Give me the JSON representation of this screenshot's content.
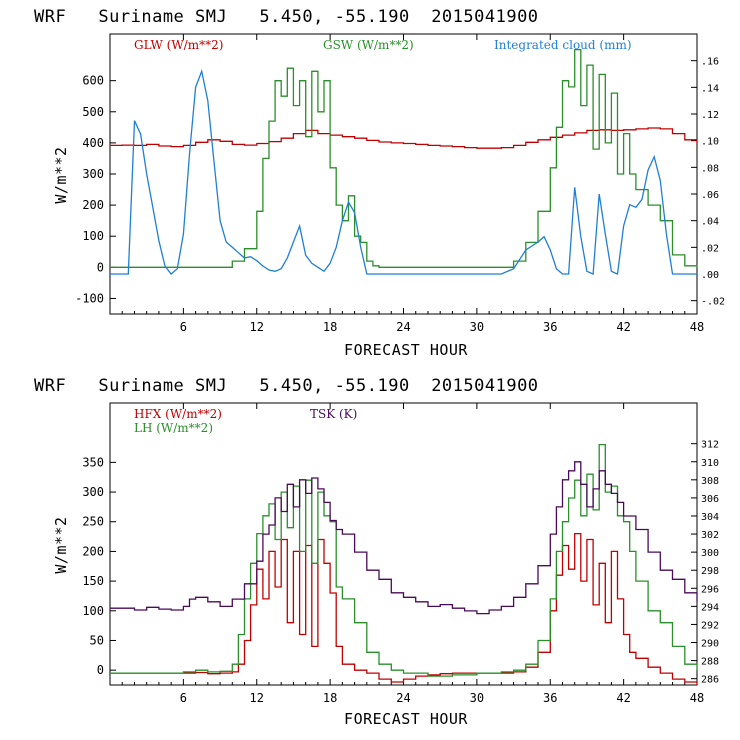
{
  "chart_data": [
    {
      "type": "line",
      "id": "top",
      "title": "WRF   Suriname SMJ   5.450, -55.190  2015041900",
      "xlabel": "FORECAST HOUR",
      "ylabel": "W/m**2",
      "xlim": [
        0,
        48
      ],
      "ylim": [
        -150,
        750
      ],
      "y2lim": [
        -0.03,
        0.18
      ],
      "xticks": [
        6,
        12,
        18,
        24,
        30,
        36,
        42,
        48
      ],
      "xtick_labels": [
        "6",
        "12",
        "18",
        "24",
        "30",
        "36",
        "42",
        "48"
      ],
      "yticks": [
        -100,
        0,
        100,
        200,
        300,
        400,
        500,
        600
      ],
      "ytick_labels": [
        "-100",
        "0",
        "100",
        "200",
        "300",
        "400",
        "500",
        "600"
      ],
      "y2ticks": [
        -0.02,
        0.0,
        0.02,
        0.04,
        0.06,
        0.08,
        0.1,
        0.12,
        0.14,
        0.16
      ],
      "y2tick_labels": [
        "-.02",
        ".00",
        ".02",
        ".04",
        ".06",
        ".08",
        ".10",
        ".12",
        ".14",
        ".16"
      ],
      "series": [
        {
          "name": "GLW (W/m**2)",
          "color": "#c00000",
          "axis": "left",
          "step": true,
          "x": [
            0,
            1,
            2,
            3,
            4,
            5,
            6,
            7,
            8,
            9,
            10,
            11,
            12,
            13,
            14,
            15,
            16,
            17,
            18,
            19,
            20,
            21,
            22,
            23,
            24,
            25,
            26,
            27,
            28,
            29,
            30,
            31,
            32,
            33,
            34,
            35,
            36,
            37,
            38,
            39,
            40,
            41,
            42,
            43,
            44,
            45,
            46,
            47,
            48
          ],
          "y": [
            392,
            393,
            392,
            395,
            390,
            388,
            392,
            402,
            410,
            405,
            395,
            393,
            398,
            404,
            415,
            430,
            440,
            430,
            425,
            420,
            415,
            408,
            403,
            400,
            398,
            395,
            392,
            390,
            388,
            385,
            383,
            383,
            385,
            392,
            402,
            410,
            418,
            425,
            432,
            440,
            442,
            440,
            442,
            445,
            448,
            445,
            430,
            410,
            395
          ]
        },
        {
          "name": "GSW (W/m**2)",
          "color": "#2a8f2a",
          "axis": "left",
          "step": true,
          "x": [
            0,
            9.5,
            10,
            11,
            12,
            12.5,
            13,
            13.5,
            14,
            14.5,
            15,
            15.5,
            16,
            16.5,
            17,
            17.5,
            18,
            18.5,
            19,
            19.5,
            20,
            20.5,
            21,
            21.5,
            22,
            32,
            33,
            34,
            35,
            36,
            36.5,
            37,
            37.5,
            38,
            38.5,
            39,
            39.5,
            40,
            40.5,
            41,
            41.5,
            42,
            42.5,
            43,
            44,
            45,
            46,
            47,
            48
          ],
          "y": [
            0,
            0,
            20,
            60,
            180,
            350,
            470,
            600,
            550,
            640,
            520,
            600,
            420,
            630,
            500,
            600,
            320,
            200,
            150,
            230,
            100,
            80,
            20,
            5,
            0,
            0,
            20,
            80,
            180,
            320,
            450,
            600,
            580,
            700,
            520,
            650,
            380,
            620,
            400,
            560,
            300,
            430,
            300,
            250,
            200,
            150,
            40,
            5,
            0
          ]
        },
        {
          "name": "Integrated cloud (mm)",
          "color": "#1f7fd6",
          "axis": "right",
          "step": false,
          "x": [
            0,
            1.5,
            2,
            2.5,
            3,
            3.5,
            4,
            4.5,
            5,
            5.5,
            6,
            6.5,
            7,
            7.5,
            8,
            8.5,
            9,
            9.5,
            10,
            10.5,
            11,
            11.5,
            12,
            12.5,
            13,
            13.5,
            14,
            14.5,
            15,
            15.5,
            16,
            16.5,
            17,
            17.5,
            18,
            18.5,
            19,
            19.5,
            20,
            20.5,
            21,
            22,
            24,
            30,
            32,
            33,
            34,
            35,
            35.5,
            36,
            36.5,
            37,
            37.5,
            38,
            38.5,
            39,
            39.5,
            40,
            40.5,
            41,
            41.5,
            42,
            42.5,
            43,
            43.5,
            44,
            44.5,
            45,
            45.5,
            46,
            47,
            48
          ],
          "y": [
            0,
            0,
            0.115,
            0.105,
            0.075,
            0.05,
            0.025,
            0.006,
            0.0,
            0.004,
            0.03,
            0.09,
            0.14,
            0.152,
            0.13,
            0.085,
            0.04,
            0.024,
            0.02,
            0.016,
            0.012,
            0.013,
            0.01,
            0.006,
            0.003,
            0.002,
            0.004,
            0.012,
            0.024,
            0.036,
            0.014,
            0.008,
            0.005,
            0.002,
            0.008,
            0.02,
            0.04,
            0.054,
            0.046,
            0.02,
            0.0,
            0.0,
            0.0,
            0.0,
            0.0,
            0.004,
            0.018,
            0.024,
            0.028,
            0.018,
            0.004,
            0.0,
            0.0,
            0.065,
            0.028,
            0.002,
            0.0,
            0.06,
            0.03,
            0.002,
            0.0,
            0.036,
            0.052,
            0.05,
            0.056,
            0.078,
            0.088,
            0.07,
            0.03,
            0.0,
            0.0,
            0.0
          ]
        }
      ]
    },
    {
      "type": "line",
      "id": "bottom",
      "title": "WRF   Suriname SMJ   5.450, -55.190  2015041900",
      "xlabel": "FORECAST HOUR",
      "ylabel": "W/m**2",
      "xlim": [
        0,
        48
      ],
      "ylim": [
        -25,
        450
      ],
      "y2lim": [
        285.3,
        316.5
      ],
      "xticks": [
        6,
        12,
        18,
        24,
        30,
        36,
        42,
        48
      ],
      "xtick_labels": [
        "6",
        "12",
        "18",
        "24",
        "30",
        "36",
        "42",
        "48"
      ],
      "yticks": [
        0,
        50,
        100,
        150,
        200,
        250,
        300,
        350
      ],
      "ytick_labels": [
        "0",
        "50",
        "100",
        "150",
        "200",
        "250",
        "300",
        "350"
      ],
      "y2ticks": [
        286,
        288,
        290,
        292,
        294,
        296,
        298,
        300,
        302,
        304,
        306,
        308,
        310,
        312
      ],
      "y2tick_labels": [
        "286",
        "288",
        "290",
        "292",
        "294",
        "296",
        "298",
        "300",
        "302",
        "304",
        "306",
        "308",
        "310",
        "312"
      ],
      "series": [
        {
          "name": "HFX (W/m**2)",
          "color": "#c00000",
          "axis": "left",
          "step": true,
          "x": [
            0,
            6,
            7,
            8,
            9,
            10,
            10.5,
            11,
            11.5,
            12,
            12.5,
            13,
            13.5,
            14,
            14.5,
            15,
            15.5,
            16,
            16.5,
            17,
            17.5,
            18,
            18.5,
            19,
            20,
            21,
            22,
            23,
            24,
            25,
            26,
            27,
            28,
            30,
            32,
            33,
            34,
            35,
            36,
            36.5,
            37,
            37.5,
            38,
            38.5,
            39,
            39.5,
            40,
            40.5,
            41,
            41.5,
            42,
            42.5,
            43,
            44,
            45,
            46,
            47,
            48
          ],
          "y": [
            -5,
            -5,
            -4,
            -6,
            -5,
            -3,
            10,
            50,
            110,
            170,
            120,
            200,
            140,
            220,
            80,
            200,
            60,
            210,
            40,
            220,
            180,
            130,
            40,
            10,
            0,
            -5,
            -15,
            -20,
            -15,
            -10,
            -8,
            -6,
            -5,
            -5,
            -5,
            -3,
            5,
            30,
            100,
            160,
            210,
            170,
            230,
            150,
            220,
            110,
            180,
            80,
            200,
            120,
            60,
            30,
            20,
            5,
            -5,
            -15,
            -20,
            -25
          ]
        },
        {
          "name": "LH (W/m**2)",
          "color": "#2a8f2a",
          "axis": "left",
          "step": true,
          "x": [
            0,
            6,
            7,
            8,
            9,
            10,
            10.5,
            11,
            11.5,
            12,
            12.5,
            13,
            13.5,
            14,
            14.5,
            15,
            15.5,
            16,
            16.5,
            17,
            17.5,
            18,
            18.5,
            19,
            20,
            21,
            22,
            23,
            24,
            26,
            28,
            30,
            32,
            33,
            34,
            35,
            36,
            36.5,
            37,
            37.5,
            38,
            38.5,
            39,
            39.5,
            40,
            40.5,
            41,
            41.5,
            42,
            42.5,
            43,
            44,
            45,
            46,
            47,
            48
          ],
          "y": [
            -5,
            -3,
            0,
            -3,
            -2,
            10,
            60,
            120,
            180,
            230,
            260,
            280,
            220,
            300,
            240,
            310,
            200,
            320,
            180,
            300,
            260,
            250,
            140,
            120,
            80,
            30,
            10,
            0,
            -5,
            -10,
            -8,
            -5,
            -3,
            0,
            10,
            50,
            120,
            200,
            250,
            290,
            320,
            260,
            330,
            270,
            380,
            300,
            310,
            260,
            250,
            200,
            150,
            100,
            80,
            40,
            10,
            0
          ]
        },
        {
          "name": "TSK (K)",
          "color": "#4a0a5a",
          "axis": "right",
          "step": true,
          "x": [
            0,
            1,
            2,
            3,
            4,
            5,
            6,
            6.5,
            7,
            8,
            9,
            10,
            11,
            12,
            12.5,
            13,
            13.5,
            14,
            14.5,
            15,
            15.5,
            16,
            16.5,
            17,
            17.5,
            18,
            18.5,
            19,
            20,
            21,
            22,
            23,
            24,
            25,
            26,
            27,
            28,
            29,
            30,
            31,
            32,
            33,
            34,
            35,
            36,
            36.5,
            37,
            37.5,
            38,
            38.5,
            39,
            39.5,
            40,
            40.5,
            41,
            41.5,
            42,
            43,
            44,
            45,
            46,
            47,
            48
          ],
          "y": [
            293.8,
            293.8,
            293.6,
            293.9,
            293.7,
            293.6,
            294.0,
            294.8,
            295.0,
            294.5,
            294.0,
            294.8,
            296.5,
            299.0,
            302.0,
            303.0,
            306.0,
            304.5,
            307.5,
            305.0,
            308.0,
            306.5,
            308.2,
            307.0,
            305.5,
            303.5,
            302.5,
            302.0,
            300.0,
            298.0,
            297.0,
            295.5,
            295.0,
            294.5,
            294.0,
            294.2,
            293.8,
            293.5,
            293.2,
            293.6,
            294.0,
            295.0,
            296.5,
            298.5,
            302.0,
            305.0,
            308.0,
            309.0,
            310.0,
            307.5,
            305.0,
            307.0,
            309.0,
            307.5,
            306.5,
            305.5,
            304.0,
            302.5,
            300.0,
            298.0,
            297.0,
            295.5,
            294.5
          ]
        }
      ]
    }
  ]
}
